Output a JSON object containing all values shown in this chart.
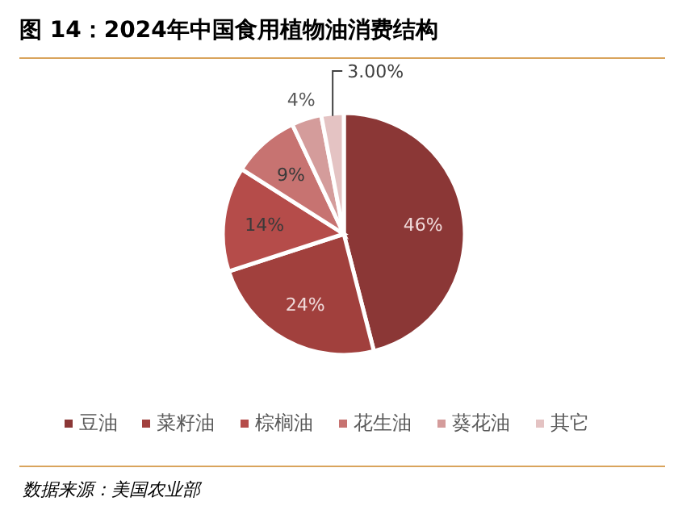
{
  "chart_data": {
    "type": "pie",
    "title": "图 14：2024年中国食用植物油消费结构",
    "categories": [
      "豆油",
      "菜籽油",
      "棕榈油",
      "花生油",
      "葵花油",
      "其它"
    ],
    "values": [
      46,
      24,
      14,
      9,
      4,
      3
    ],
    "value_labels": [
      "46%",
      "24%",
      "14%",
      "9%",
      "4%",
      "3.00%"
    ],
    "colors": [
      "#8b3736",
      "#a1403d",
      "#b54c4a",
      "#c77371",
      "#d49c9b",
      "#e4c3c3"
    ],
    "legend": "bottom",
    "annotations": [
      "数据来源：美国农业部"
    ]
  }
}
